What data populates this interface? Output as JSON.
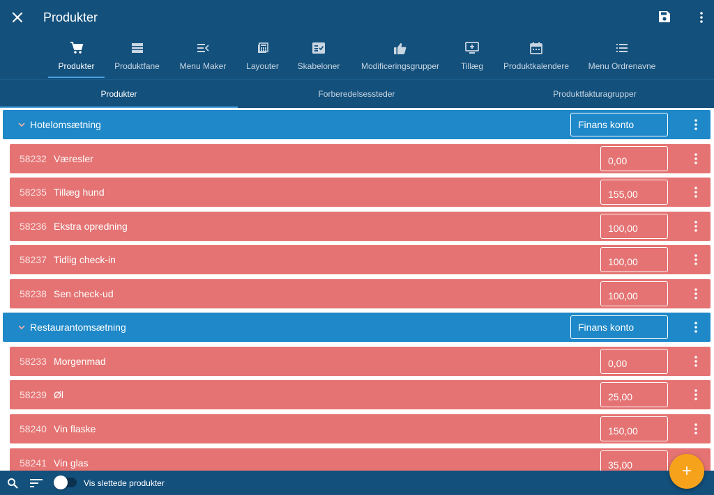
{
  "app": {
    "title": "Produkter"
  },
  "nav": {
    "items": [
      {
        "label": "Produkter",
        "icon": "cart-icon"
      },
      {
        "label": "Produktfane",
        "icon": "menu-bars-icon"
      },
      {
        "label": "Menu Maker",
        "icon": "menu-open-icon"
      },
      {
        "label": "Layouter",
        "icon": "calculator-icon"
      },
      {
        "label": "Skabeloner",
        "icon": "checklist-icon"
      },
      {
        "label": "Modificeringsgrupper",
        "icon": "thumb-up-icon"
      },
      {
        "label": "Tillæg",
        "icon": "monitor-plus-icon"
      },
      {
        "label": "Produktkalendere",
        "icon": "calendar-icon"
      },
      {
        "label": "Menu Ordrenavne",
        "icon": "list-icon"
      }
    ]
  },
  "subtabs": [
    "Produkter",
    "Forberedelsessteder",
    "Produktfakturagrupper"
  ],
  "groups": [
    {
      "name": "Hotelomsætning",
      "button": "Finans konto",
      "products": [
        {
          "id": "58232",
          "name": "Væresler",
          "price": "0,00"
        },
        {
          "id": "58235",
          "name": "Tillæg hund",
          "price": "155,00"
        },
        {
          "id": "58236",
          "name": "Ekstra opredning",
          "price": "100,00"
        },
        {
          "id": "58237",
          "name": "Tidlig check-in",
          "price": "100,00"
        },
        {
          "id": "58238",
          "name": "Sen check-ud",
          "price": "100,00"
        }
      ]
    },
    {
      "name": "Restaurantomsætning",
      "button": "Finans konto",
      "products": [
        {
          "id": "58233",
          "name": "Morgenmad",
          "price": "0,00"
        },
        {
          "id": "58239",
          "name": "Øl",
          "price": "25,00"
        },
        {
          "id": "58240",
          "name": "Vin flaske",
          "price": "150,00"
        },
        {
          "id": "58241",
          "name": "Vin glas",
          "price": "35,00"
        }
      ]
    }
  ],
  "bottom": {
    "toggle_label": "Vis slettede produkter",
    "fab": "+"
  },
  "colors": {
    "primary": "#13507c",
    "group": "#1e88c9",
    "product": "#e57373",
    "accent": "#f7a21b",
    "indicator": "#4aa3e0"
  }
}
